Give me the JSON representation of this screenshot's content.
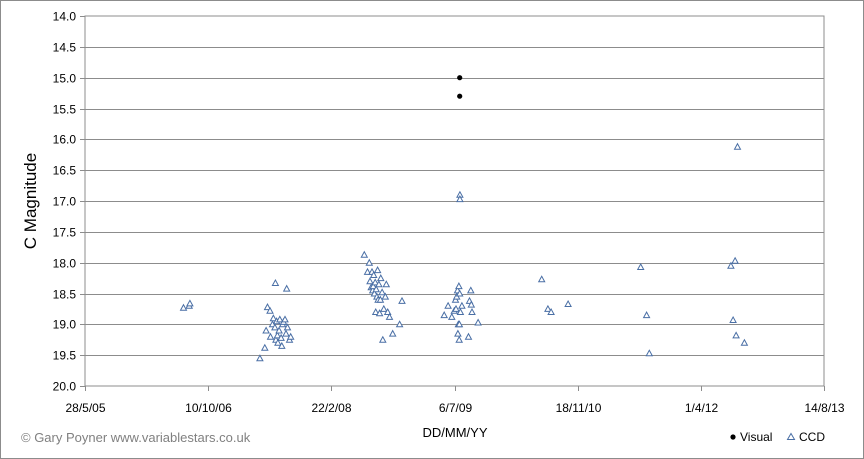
{
  "chart_data": {
    "type": "scatter",
    "title": "",
    "xlabel": "DD/MM/YY",
    "ylabel": "C Magnitude",
    "y_inverted": true,
    "ylim": [
      14.0,
      20.0
    ],
    "y_ticks": [
      "14.0",
      "14.5",
      "15.0",
      "15.5",
      "16.0",
      "16.5",
      "17.0",
      "17.5",
      "18.0",
      "18.5",
      "19.0",
      "19.5",
      "20.0"
    ],
    "x_axis_type": "date",
    "xlim": [
      "28/5/05",
      "14/8/13"
    ],
    "x_ticks": [
      "28/5/05",
      "10/10/06",
      "22/2/08",
      "6/7/09",
      "18/11/10",
      "1/4/12",
      "14/8/13"
    ],
    "grid": "horizontal major",
    "legend_position": "bottom-right",
    "series": [
      {
        "name": "Visual",
        "marker": "filled-circle",
        "color": "#000000",
        "points": [
          {
            "x": "2009-07-27",
            "y": 15.0
          },
          {
            "x": "2009-07-27",
            "y": 15.3
          }
        ]
      },
      {
        "name": "CCD",
        "marker": "triangle",
        "color": "#4a6fa5",
        "points": [
          {
            "x": "2006-07-02",
            "y": 18.73
          },
          {
            "x": "2006-07-25",
            "y": 18.7
          },
          {
            "x": "2006-07-28",
            "y": 18.66
          },
          {
            "x": "2007-05-08",
            "y": 19.55
          },
          {
            "x": "2007-05-28",
            "y": 19.38
          },
          {
            "x": "2007-06-02",
            "y": 19.1
          },
          {
            "x": "2007-06-08",
            "y": 18.72
          },
          {
            "x": "2007-06-18",
            "y": 18.78
          },
          {
            "x": "2007-06-20",
            "y": 19.2
          },
          {
            "x": "2007-06-28",
            "y": 19.0
          },
          {
            "x": "2007-07-02",
            "y": 18.9
          },
          {
            "x": "2007-07-08",
            "y": 19.05
          },
          {
            "x": "2007-07-10",
            "y": 18.33
          },
          {
            "x": "2007-07-12",
            "y": 19.25
          },
          {
            "x": "2007-07-15",
            "y": 18.95
          },
          {
            "x": "2007-07-18",
            "y": 19.18
          },
          {
            "x": "2007-07-20",
            "y": 19.3
          },
          {
            "x": "2007-07-25",
            "y": 19.1
          },
          {
            "x": "2007-07-28",
            "y": 18.92
          },
          {
            "x": "2007-08-02",
            "y": 19.22
          },
          {
            "x": "2007-08-05",
            "y": 19.35
          },
          {
            "x": "2007-08-08",
            "y": 19.0
          },
          {
            "x": "2007-08-12",
            "y": 18.96
          },
          {
            "x": "2007-08-18",
            "y": 18.92
          },
          {
            "x": "2007-08-22",
            "y": 19.15
          },
          {
            "x": "2007-08-25",
            "y": 18.42
          },
          {
            "x": "2007-08-28",
            "y": 19.05
          },
          {
            "x": "2007-09-05",
            "y": 19.25
          },
          {
            "x": "2007-09-10",
            "y": 19.2
          },
          {
            "x": "2008-07-05",
            "y": 17.87
          },
          {
            "x": "2008-07-18",
            "y": 18.15
          },
          {
            "x": "2008-07-25",
            "y": 18.0
          },
          {
            "x": "2008-07-28",
            "y": 18.3
          },
          {
            "x": "2008-08-02",
            "y": 18.4
          },
          {
            "x": "2008-08-05",
            "y": 18.15
          },
          {
            "x": "2008-08-08",
            "y": 18.45
          },
          {
            "x": "2008-08-10",
            "y": 18.38
          },
          {
            "x": "2008-08-12",
            "y": 18.2
          },
          {
            "x": "2008-08-15",
            "y": 18.5
          },
          {
            "x": "2008-08-18",
            "y": 18.32
          },
          {
            "x": "2008-08-20",
            "y": 18.8
          },
          {
            "x": "2008-08-22",
            "y": 18.43
          },
          {
            "x": "2008-08-25",
            "y": 18.55
          },
          {
            "x": "2008-08-28",
            "y": 18.12
          },
          {
            "x": "2008-08-30",
            "y": 18.6
          },
          {
            "x": "2008-09-02",
            "y": 18.35
          },
          {
            "x": "2008-09-05",
            "y": 18.82
          },
          {
            "x": "2008-09-08",
            "y": 18.6
          },
          {
            "x": "2008-09-10",
            "y": 18.25
          },
          {
            "x": "2008-09-15",
            "y": 18.48
          },
          {
            "x": "2008-09-18",
            "y": 19.25
          },
          {
            "x": "2008-09-22",
            "y": 18.75
          },
          {
            "x": "2008-09-28",
            "y": 18.55
          },
          {
            "x": "2008-10-02",
            "y": 18.35
          },
          {
            "x": "2008-10-08",
            "y": 18.8
          },
          {
            "x": "2008-10-15",
            "y": 18.88
          },
          {
            "x": "2008-10-28",
            "y": 19.15
          },
          {
            "x": "2008-11-25",
            "y": 19.0
          },
          {
            "x": "2008-12-05",
            "y": 18.62
          },
          {
            "x": "2009-05-25",
            "y": 18.85
          },
          {
            "x": "2009-06-10",
            "y": 18.7
          },
          {
            "x": "2009-06-25",
            "y": 18.88
          },
          {
            "x": "2009-07-05",
            "y": 18.78
          },
          {
            "x": "2009-07-10",
            "y": 18.6
          },
          {
            "x": "2009-07-12",
            "y": 18.75
          },
          {
            "x": "2009-07-15",
            "y": 18.55
          },
          {
            "x": "2009-07-18",
            "y": 18.45
          },
          {
            "x": "2009-07-20",
            "y": 19.15
          },
          {
            "x": "2009-07-22",
            "y": 19.0
          },
          {
            "x": "2009-07-24",
            "y": 18.38
          },
          {
            "x": "2009-07-25",
            "y": 19.25
          },
          {
            "x": "2009-07-26",
            "y": 19.0
          },
          {
            "x": "2009-07-27",
            "y": 18.5
          },
          {
            "x": "2009-07-28",
            "y": 16.9
          },
          {
            "x": "2009-07-28",
            "y": 16.97
          },
          {
            "x": "2009-07-30",
            "y": 18.8
          },
          {
            "x": "2009-08-05",
            "y": 18.7
          },
          {
            "x": "2009-09-01",
            "y": 19.2
          },
          {
            "x": "2009-09-05",
            "y": 18.62
          },
          {
            "x": "2009-09-10",
            "y": 18.45
          },
          {
            "x": "2009-09-12",
            "y": 18.68
          },
          {
            "x": "2009-09-15",
            "y": 18.8
          },
          {
            "x": "2009-10-10",
            "y": 18.97
          },
          {
            "x": "2010-06-25",
            "y": 18.27
          },
          {
            "x": "2010-07-20",
            "y": 18.75
          },
          {
            "x": "2010-08-02",
            "y": 18.8
          },
          {
            "x": "2010-10-10",
            "y": 18.67
          },
          {
            "x": "2011-08-01",
            "y": 18.07
          },
          {
            "x": "2011-08-25",
            "y": 18.85
          },
          {
            "x": "2011-09-05",
            "y": 19.47
          },
          {
            "x": "2012-08-01",
            "y": 18.05
          },
          {
            "x": "2012-08-10",
            "y": 18.93
          },
          {
            "x": "2012-08-18",
            "y": 17.97
          },
          {
            "x": "2012-08-22",
            "y": 19.18
          },
          {
            "x": "2012-08-28",
            "y": 16.12
          },
          {
            "x": "2012-09-25",
            "y": 19.3
          }
        ]
      }
    ]
  },
  "credit": "© Gary Poyner   www.variablestars.co.uk"
}
